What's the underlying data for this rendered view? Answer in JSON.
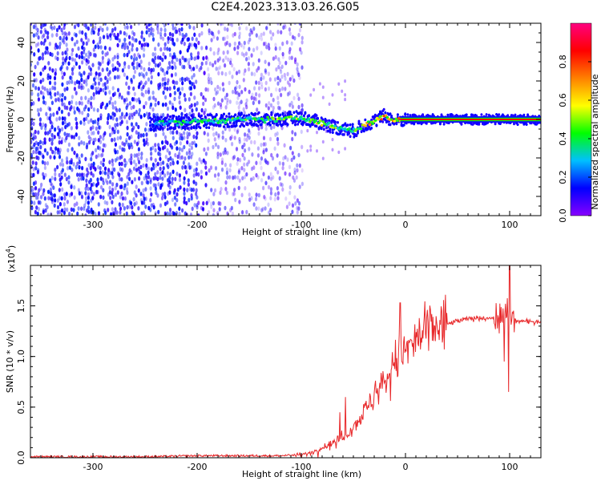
{
  "title": "C2E4.2023.313.03.26.G05",
  "chart_data": [
    {
      "type": "heatmap",
      "title": "C2E4.2023.313.03.26.G05",
      "xlabel": "Height of straight line (km)",
      "ylabel": "Frequency (Hz)",
      "xlim": [
        -360,
        130
      ],
      "ylim": [
        -50,
        50
      ],
      "xticks": [
        -300,
        -200,
        -100,
        0,
        100
      ],
      "yticks": [
        -40,
        -20,
        0,
        20,
        40
      ],
      "colorbar": {
        "label": "Normalized spectral amplitude",
        "range": [
          0,
          1
        ],
        "ticks": [
          "0.0",
          "0.2",
          "0.4",
          "0.6",
          "0.8"
        ],
        "colors": [
          "#8800ff",
          "#0000ff",
          "#00c0ff",
          "#00ff00",
          "#ffff00",
          "#ff8000",
          "#ff0000",
          "#ff0080"
        ]
      },
      "signal_track": {
        "x": [
          -240,
          -200,
          -150,
          -120,
          -100,
          -80,
          -60,
          -50,
          -40,
          -30,
          -20,
          -10,
          0,
          50,
          100,
          130
        ],
        "freq": [
          -2,
          -1,
          0,
          0,
          1,
          -2,
          -5,
          -6,
          -3,
          -1,
          2,
          -1,
          0,
          0,
          0,
          0
        ],
        "amplitude": [
          0.35,
          0.45,
          0.45,
          0.5,
          0.55,
          0.6,
          0.45,
          0.55,
          0.6,
          0.7,
          0.75,
          0.8,
          0.85,
          0.85,
          0.85,
          0.85
        ]
      }
    },
    {
      "type": "line",
      "title": "",
      "xlabel": "Height of straight line (km)",
      "ylabel": "SNR (10 * v/v)",
      "exponent_label": "(x10",
      "exponent_power": "4",
      "exponent_close": ")",
      "xlim": [
        -360,
        130
      ],
      "ylim": [
        0,
        1.9
      ],
      "xticks": [
        -300,
        -200,
        -100,
        0,
        100
      ],
      "yticks": [
        "0.0",
        "0.5",
        "1.0",
        "1.5"
      ],
      "series": [
        {
          "name": "SNR",
          "color": "#e8282a",
          "x": [
            -360,
            -300,
            -250,
            -200,
            -150,
            -120,
            -100,
            -90,
            -80,
            -70,
            -60,
            -50,
            -40,
            -30,
            -20,
            -15,
            -10,
            -5,
            0,
            10,
            20,
            30,
            40,
            50,
            60,
            70,
            80,
            90,
            95,
            100,
            105,
            110,
            120,
            130
          ],
          "y": [
            0.01,
            0.01,
            0.01,
            0.02,
            0.02,
            0.02,
            0.03,
            0.05,
            0.1,
            0.15,
            0.2,
            0.3,
            0.45,
            0.6,
            0.75,
            0.85,
            0.95,
            1.0,
            1.05,
            1.15,
            1.25,
            1.3,
            1.32,
            1.35,
            1.37,
            1.38,
            1.38,
            1.38,
            1.4,
            1.45,
            1.35,
            1.35,
            1.34,
            1.35
          ]
        }
      ]
    }
  ]
}
